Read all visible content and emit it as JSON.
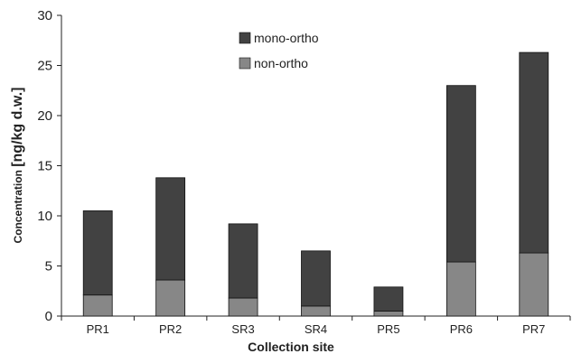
{
  "chart_data": {
    "type": "bar",
    "stacked": true,
    "categories": [
      "PR1",
      "PR2",
      "SR3",
      "SR4",
      "PR5",
      "PR6",
      "PR7"
    ],
    "series": [
      {
        "name": "non-ortho",
        "values": [
          2.1,
          3.6,
          1.8,
          1.0,
          0.5,
          5.4,
          6.3
        ],
        "color": "#878787"
      },
      {
        "name": "mono-ortho",
        "values": [
          8.4,
          10.2,
          7.4,
          5.5,
          2.4,
          17.6,
          20.0
        ],
        "color": "#424242"
      }
    ],
    "xlabel": "Collection site",
    "ylabel_prefix": "Concentration ",
    "ylabel_unit": "[ng/kg d.w.]",
    "ylim": [
      0,
      30
    ],
    "yticks": [
      0,
      5,
      10,
      15,
      20,
      25,
      30
    ],
    "grid": false,
    "legend_position": "top-center"
  }
}
